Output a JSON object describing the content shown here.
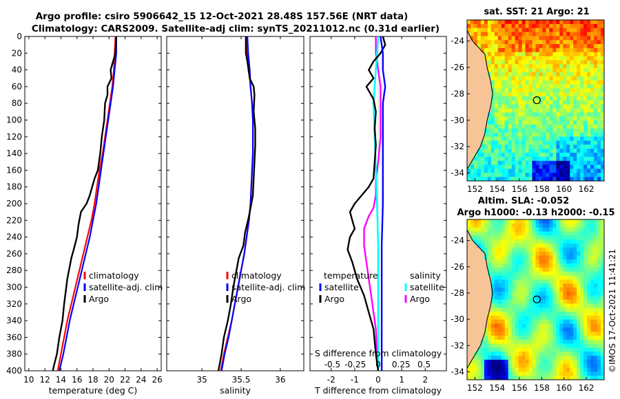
{
  "title": {
    "line1": "Argo profile: csiro 5906642_15 12-Oct-2021 28.48S 157.56E (NRT data)",
    "line2": "Climatology: CARS2009. Satellite-adj clim: synTS_20211012.nc (0.31d earlier)"
  },
  "copyright": "©IMOS 17-Oct-2021 11:41:21",
  "colors": {
    "clim": "#ff0000",
    "sat": "#0000ff",
    "argo": "#000000",
    "sat_s": "#00ffff",
    "argo_s": "#ff00ff",
    "land": "#f7c497"
  },
  "chart_data": [
    {
      "type": "line",
      "id": "temperature",
      "xlabel": "temperature (deg C)",
      "xlim": [
        9.5,
        26.5
      ],
      "ylim": [
        400,
        0
      ],
      "xticks": [
        10,
        12,
        14,
        16,
        18,
        20,
        22,
        24,
        26
      ],
      "yticks": [
        0,
        20,
        40,
        60,
        80,
        100,
        120,
        140,
        160,
        180,
        200,
        220,
        240,
        260,
        280,
        300,
        320,
        340,
        360,
        380,
        400
      ],
      "legend": [
        "climatology",
        "satellite-adj. clim",
        "Argo"
      ],
      "series": [
        {
          "name": "climatology",
          "points": [
            [
              20.8,
              0
            ],
            [
              20.7,
              20
            ],
            [
              20.6,
              40
            ],
            [
              20.4,
              60
            ],
            [
              20.1,
              80
            ],
            [
              19.8,
              100
            ],
            [
              19.5,
              120
            ],
            [
              19.2,
              140
            ],
            [
              18.8,
              160
            ],
            [
              18.5,
              180
            ],
            [
              18.2,
              200
            ],
            [
              17.8,
              220
            ],
            [
              17.3,
              240
            ],
            [
              16.8,
              260
            ],
            [
              16.3,
              280
            ],
            [
              15.8,
              300
            ],
            [
              15.3,
              320
            ],
            [
              14.8,
              340
            ],
            [
              14.4,
              360
            ],
            [
              14.0,
              380
            ],
            [
              13.6,
              400
            ]
          ]
        },
        {
          "name": "satellite-adj. clim",
          "points": [
            [
              20.9,
              0
            ],
            [
              20.9,
              20
            ],
            [
              20.7,
              40
            ],
            [
              20.5,
              60
            ],
            [
              20.2,
              80
            ],
            [
              19.9,
              100
            ],
            [
              19.6,
              120
            ],
            [
              19.3,
              140
            ],
            [
              19.0,
              160
            ],
            [
              18.7,
              180
            ],
            [
              18.4,
              200
            ],
            [
              18.0,
              220
            ],
            [
              17.6,
              240
            ],
            [
              17.1,
              260
            ],
            [
              16.6,
              280
            ],
            [
              16.1,
              300
            ],
            [
              15.6,
              320
            ],
            [
              15.1,
              340
            ],
            [
              14.7,
              360
            ],
            [
              14.3,
              380
            ],
            [
              13.8,
              400
            ]
          ]
        },
        {
          "name": "Argo",
          "points": [
            [
              20.9,
              0
            ],
            [
              20.8,
              20
            ],
            [
              20.5,
              30
            ],
            [
              20.2,
              40
            ],
            [
              20.3,
              50
            ],
            [
              19.8,
              60
            ],
            [
              19.8,
              70
            ],
            [
              19.5,
              80
            ],
            [
              19.4,
              100
            ],
            [
              19.1,
              120
            ],
            [
              18.9,
              140
            ],
            [
              18.6,
              160
            ],
            [
              18.2,
              170
            ],
            [
              17.9,
              180
            ],
            [
              17.6,
              190
            ],
            [
              17.2,
              200
            ],
            [
              16.5,
              210
            ],
            [
              16.2,
              225
            ],
            [
              16.0,
              240
            ],
            [
              15.6,
              255
            ],
            [
              15.3,
              265
            ],
            [
              15.0,
              280
            ],
            [
              14.8,
              290
            ],
            [
              14.6,
              305
            ],
            [
              14.4,
              320
            ],
            [
              14.2,
              340
            ],
            [
              13.8,
              360
            ],
            [
              13.5,
              380
            ],
            [
              13.1,
              395
            ],
            [
              13.0,
              400
            ]
          ]
        }
      ]
    },
    {
      "type": "line",
      "id": "salinity",
      "xlabel": "salinity",
      "xlim": [
        34.55,
        36.3
      ],
      "ylim": [
        400,
        0
      ],
      "xticks": [
        35,
        35.5,
        36
      ],
      "xticklabels": [
        "35",
        "35.5",
        "36"
      ],
      "legend": [
        "climatology",
        "satellite-adj. clim",
        "Argo"
      ],
      "series": [
        {
          "name": "climatology",
          "points": [
            [
              35.57,
              0
            ],
            [
              35.58,
              20
            ],
            [
              35.6,
              40
            ],
            [
              35.62,
              60
            ],
            [
              35.64,
              80
            ],
            [
              35.65,
              100
            ],
            [
              35.65,
              120
            ],
            [
              35.65,
              140
            ],
            [
              35.64,
              160
            ],
            [
              35.63,
              180
            ],
            [
              35.62,
              200
            ],
            [
              35.6,
              220
            ],
            [
              35.57,
              240
            ],
            [
              35.54,
              260
            ],
            [
              35.5,
              280
            ],
            [
              35.46,
              300
            ],
            [
              35.42,
              320
            ],
            [
              35.38,
              340
            ],
            [
              35.33,
              360
            ],
            [
              35.28,
              380
            ],
            [
              35.24,
              400
            ]
          ]
        },
        {
          "name": "satellite-adj. clim",
          "points": [
            [
              35.58,
              0
            ],
            [
              35.59,
              20
            ],
            [
              35.61,
              40
            ],
            [
              35.62,
              60
            ],
            [
              35.64,
              80
            ],
            [
              35.65,
              100
            ],
            [
              35.65,
              120
            ],
            [
              35.65,
              140
            ],
            [
              35.64,
              160
            ],
            [
              35.63,
              180
            ],
            [
              35.62,
              200
            ],
            [
              35.6,
              220
            ],
            [
              35.57,
              240
            ],
            [
              35.54,
              260
            ],
            [
              35.5,
              280
            ],
            [
              35.46,
              300
            ],
            [
              35.42,
              320
            ],
            [
              35.38,
              340
            ],
            [
              35.34,
              360
            ],
            [
              35.29,
              380
            ],
            [
              35.25,
              400
            ]
          ]
        },
        {
          "name": "Argo",
          "points": [
            [
              35.56,
              0
            ],
            [
              35.56,
              20
            ],
            [
              35.58,
              30
            ],
            [
              35.61,
              50
            ],
            [
              35.66,
              60
            ],
            [
              35.67,
              70
            ],
            [
              35.66,
              90
            ],
            [
              35.68,
              110
            ],
            [
              35.68,
              130
            ],
            [
              35.67,
              150
            ],
            [
              35.66,
              170
            ],
            [
              35.65,
              190
            ],
            [
              35.62,
              205
            ],
            [
              35.6,
              215
            ],
            [
              35.55,
              235
            ],
            [
              35.53,
              250
            ],
            [
              35.47,
              265
            ],
            [
              35.43,
              285
            ],
            [
              35.4,
              300
            ],
            [
              35.37,
              320
            ],
            [
              35.33,
              340
            ],
            [
              35.28,
              360
            ],
            [
              35.25,
              380
            ],
            [
              35.21,
              400
            ]
          ]
        }
      ]
    },
    {
      "type": "line",
      "id": "difference",
      "xlabel": "T difference from climatology",
      "xlabel_top": "S difference from climatology",
      "xlim": [
        -2.9,
        2.9
      ],
      "ylim": [
        400,
        0
      ],
      "xticks": [
        -2,
        -1,
        0,
        1,
        2
      ],
      "xticklabels": [
        "-2",
        "-1",
        "0",
        "1",
        "2"
      ],
      "s_ticklabels": [
        "-0.5",
        "-0.25",
        "0",
        "0.25",
        "0.5"
      ],
      "legend_t_title": "temperature",
      "legend_s_title": "salinity",
      "legend_t": [
        "satellite",
        "Argo"
      ],
      "legend_s": [
        "satellite",
        "Argo"
      ],
      "series": [
        {
          "name": "T satellite",
          "points": [
            [
              0.1,
              0
            ],
            [
              0.2,
              20
            ],
            [
              0.2,
              40
            ],
            [
              0.3,
              60
            ],
            [
              0.2,
              80
            ],
            [
              0.2,
              100
            ],
            [
              0.2,
              130
            ],
            [
              0.2,
              160
            ],
            [
              0.2,
              200
            ],
            [
              0.15,
              250
            ],
            [
              0.15,
              300
            ],
            [
              0.15,
              350
            ],
            [
              0.15,
              400
            ]
          ]
        },
        {
          "name": "T Argo",
          "points": [
            [
              0.2,
              0
            ],
            [
              0.3,
              10
            ],
            [
              0.1,
              20
            ],
            [
              -0.2,
              30
            ],
            [
              -0.4,
              40
            ],
            [
              -0.2,
              50
            ],
            [
              -0.5,
              60
            ],
            [
              -0.2,
              75
            ],
            [
              -0.1,
              90
            ],
            [
              -0.15,
              110
            ],
            [
              -0.1,
              130
            ],
            [
              -0.15,
              150
            ],
            [
              -0.2,
              170
            ],
            [
              -0.4,
              180
            ],
            [
              -0.7,
              190
            ],
            [
              -1.0,
              200
            ],
            [
              -1.2,
              210
            ],
            [
              -1.1,
              220
            ],
            [
              -1.0,
              230
            ],
            [
              -1.2,
              240
            ],
            [
              -1.3,
              255
            ],
            [
              -1.1,
              270
            ],
            [
              -0.9,
              290
            ],
            [
              -0.6,
              310
            ],
            [
              -0.4,
              330
            ],
            [
              -0.2,
              350
            ],
            [
              -0.1,
              380
            ],
            [
              0.0,
              400
            ]
          ]
        },
        {
          "name": "S satellite",
          "points": [
            [
              0.0,
              0
            ],
            [
              -0.1,
              40
            ],
            [
              -0.2,
              80
            ],
            [
              -0.15,
              120
            ],
            [
              -0.1,
              160
            ],
            [
              -0.05,
              200
            ],
            [
              0.0,
              250
            ],
            [
              0.0,
              300
            ],
            [
              0.0,
              350
            ],
            [
              0.0,
              400
            ]
          ]
        },
        {
          "name": "S Argo",
          "points": [
            [
              -0.1,
              0
            ],
            [
              -0.1,
              20
            ],
            [
              0.0,
              40
            ],
            [
              0.1,
              60
            ],
            [
              0.1,
              90
            ],
            [
              0.1,
              120
            ],
            [
              0.0,
              150
            ],
            [
              -0.1,
              170
            ],
            [
              -0.1,
              190
            ],
            [
              -0.2,
              205
            ],
            [
              -0.4,
              215
            ],
            [
              -0.6,
              230
            ],
            [
              -0.6,
              250
            ],
            [
              -0.5,
              270
            ],
            [
              -0.4,
              290
            ],
            [
              -0.3,
              310
            ],
            [
              -0.2,
              330
            ],
            [
              -0.1,
              350
            ],
            [
              -0.05,
              380
            ],
            [
              0.0,
              400
            ]
          ]
        }
      ]
    },
    {
      "type": "heatmap",
      "id": "sst_map",
      "title": "sat. SST: 21 Argo: 21",
      "xlim": [
        151.3,
        163.6
      ],
      "ylim": [
        -34.6,
        -22.4
      ],
      "xticks": [
        152,
        154,
        156,
        158,
        160,
        162
      ],
      "yticks": [
        -24,
        -26,
        -28,
        -30,
        -32,
        -34
      ],
      "argo_location": [
        157.56,
        -28.48
      ]
    },
    {
      "type": "heatmap",
      "id": "sla_map",
      "title": "Altim. SLA: -0.052",
      "subtitle": "Argo h1000: -0.13 h2000: -0.15",
      "xlim": [
        151.3,
        163.6
      ],
      "ylim": [
        -34.6,
        -22.4
      ],
      "xticks": [
        152,
        154,
        156,
        158,
        160,
        162
      ],
      "yticks": [
        -24,
        -26,
        -28,
        -30,
        -32,
        -34
      ],
      "argo_location": [
        157.56,
        -28.48
      ]
    }
  ]
}
